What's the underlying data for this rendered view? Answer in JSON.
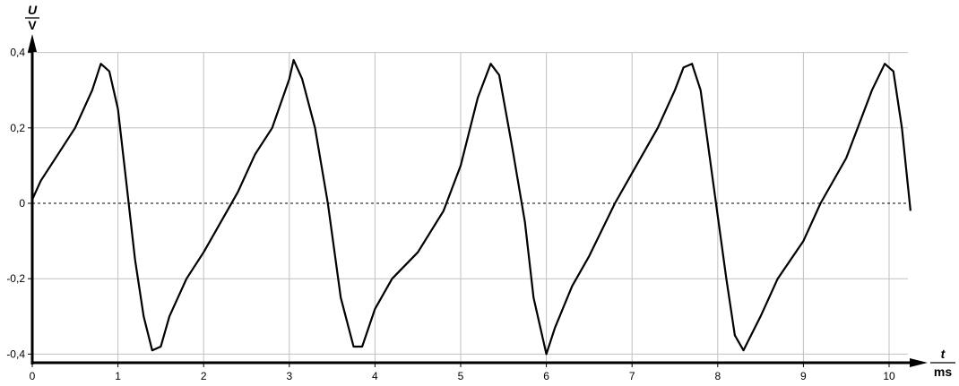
{
  "chart_data": {
    "type": "line",
    "title": "",
    "xlabel": {
      "symbol": "t",
      "unit": "ms"
    },
    "ylabel": {
      "symbol": "U",
      "unit": "V"
    },
    "xlim": [
      0,
      10.25
    ],
    "ylim": [
      -0.4,
      0.4
    ],
    "xticks": [
      "0",
      "1",
      "2",
      "3",
      "4",
      "5",
      "6",
      "7",
      "8",
      "9",
      "10"
    ],
    "yticks": [
      {
        "value": 0.4,
        "label": "0,4"
      },
      {
        "value": 0.2,
        "label": "0,2"
      },
      {
        "value": 0,
        "label": "0"
      },
      {
        "value": -0.2,
        "label": "-0,2"
      },
      {
        "value": -0.4,
        "label": "-0,4"
      }
    ],
    "grid": true,
    "zero_line": "dotted",
    "colors": {
      "line": "#000000",
      "grid": "#c0c0c0"
    },
    "series": [
      {
        "x": [
          0,
          0.1,
          0.3,
          0.5,
          0.7,
          0.8,
          0.9,
          1.0,
          1.1,
          1.2,
          1.3,
          1.4,
          1.5,
          1.6,
          1.8,
          2.0,
          2.2,
          2.4,
          2.6,
          2.8,
          3.0,
          3.05,
          3.15,
          3.3,
          3.45,
          3.6,
          3.75,
          3.85,
          4.0,
          4.2,
          4.5,
          4.8,
          5.0,
          5.2,
          5.35,
          5.45,
          5.6,
          5.75,
          5.85,
          6.0,
          6.1,
          6.3,
          6.5,
          6.8,
          7.0,
          7.3,
          7.5,
          7.6,
          7.7,
          7.8,
          7.95,
          8.1,
          8.2,
          8.3,
          8.5,
          8.7,
          9.0,
          9.2,
          9.5,
          9.8,
          9.95,
          10.05,
          10.15,
          10.25
        ],
        "y": [
          0.01,
          0.06,
          0.13,
          0.2,
          0.3,
          0.37,
          0.35,
          0.25,
          0.05,
          -0.15,
          -0.3,
          -0.39,
          -0.38,
          -0.3,
          -0.2,
          -0.13,
          -0.05,
          0.03,
          0.13,
          0.2,
          0.33,
          0.38,
          0.33,
          0.2,
          0.0,
          -0.25,
          -0.38,
          -0.38,
          -0.28,
          -0.2,
          -0.13,
          -0.02,
          0.1,
          0.28,
          0.37,
          0.34,
          0.15,
          -0.05,
          -0.25,
          -0.4,
          -0.33,
          -0.22,
          -0.14,
          0.0,
          0.08,
          0.2,
          0.3,
          0.36,
          0.37,
          0.3,
          0.05,
          -0.2,
          -0.35,
          -0.39,
          -0.3,
          -0.2,
          -0.1,
          0.0,
          0.12,
          0.3,
          0.37,
          0.35,
          0.2,
          -0.02
        ]
      }
    ]
  }
}
